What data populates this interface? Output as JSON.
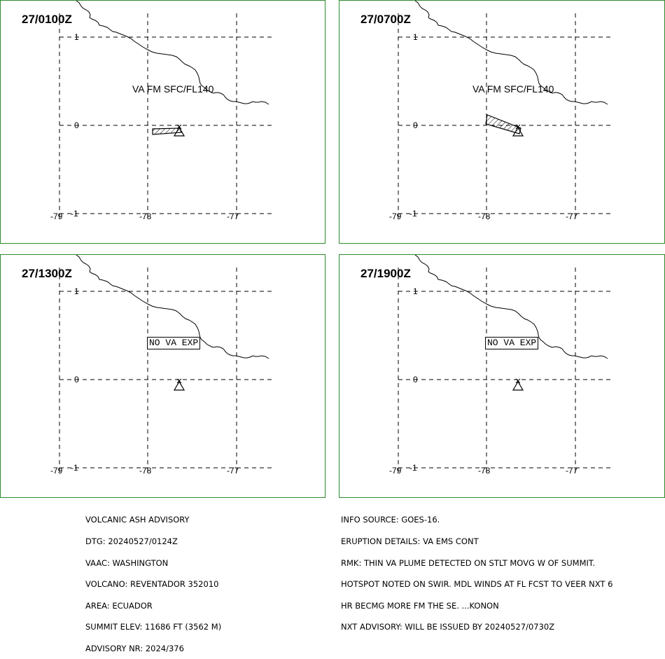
{
  "panels": [
    {
      "time": "27/0100Z",
      "label": "VA FM SFC/FL140",
      "kind": "plume1"
    },
    {
      "time": "27/0700Z",
      "label": "VA FM SFC/FL140",
      "kind": "plume2"
    },
    {
      "time": "27/1300Z",
      "label": "NO VA EXP",
      "kind": "none"
    },
    {
      "time": "27/1900Z",
      "label": "NO VA EXP",
      "kind": "none"
    }
  ],
  "axes": {
    "lat_labels": [
      "1",
      "0",
      "-1"
    ],
    "lon_labels": [
      "-79",
      "-78",
      "-77"
    ]
  },
  "advisory_left": [
    "VOLCANIC ASH ADVISORY",
    "DTG: 20240527/0124Z",
    "VAAC: WASHINGTON",
    "VOLCANO: REVENTADOR 352010",
    "AREA: ECUADOR",
    "SUMMIT ELEV: 11686 FT (3562 M)",
    "ADVISORY NR: 2024/376"
  ],
  "advisory_right": [
    "INFO SOURCE: GOES-16.",
    "ERUPTION DETAILS: VA EMS CONT",
    "RMK: THIN VA PLUME DETECTED ON STLT MOVG W OF SUMMIT.",
    "HOTSPOT NOTED ON SWIR. MDL WINDS AT FL FCST TO VEER NXT 6",
    "HR BECMG MORE FM THE SE. ...KONON",
    "NXT ADVISORY: WILL BE ISSUED BY 20240527/0730Z"
  ],
  "colors": {
    "frame": "#2e8b2e",
    "ink": "#000000"
  }
}
